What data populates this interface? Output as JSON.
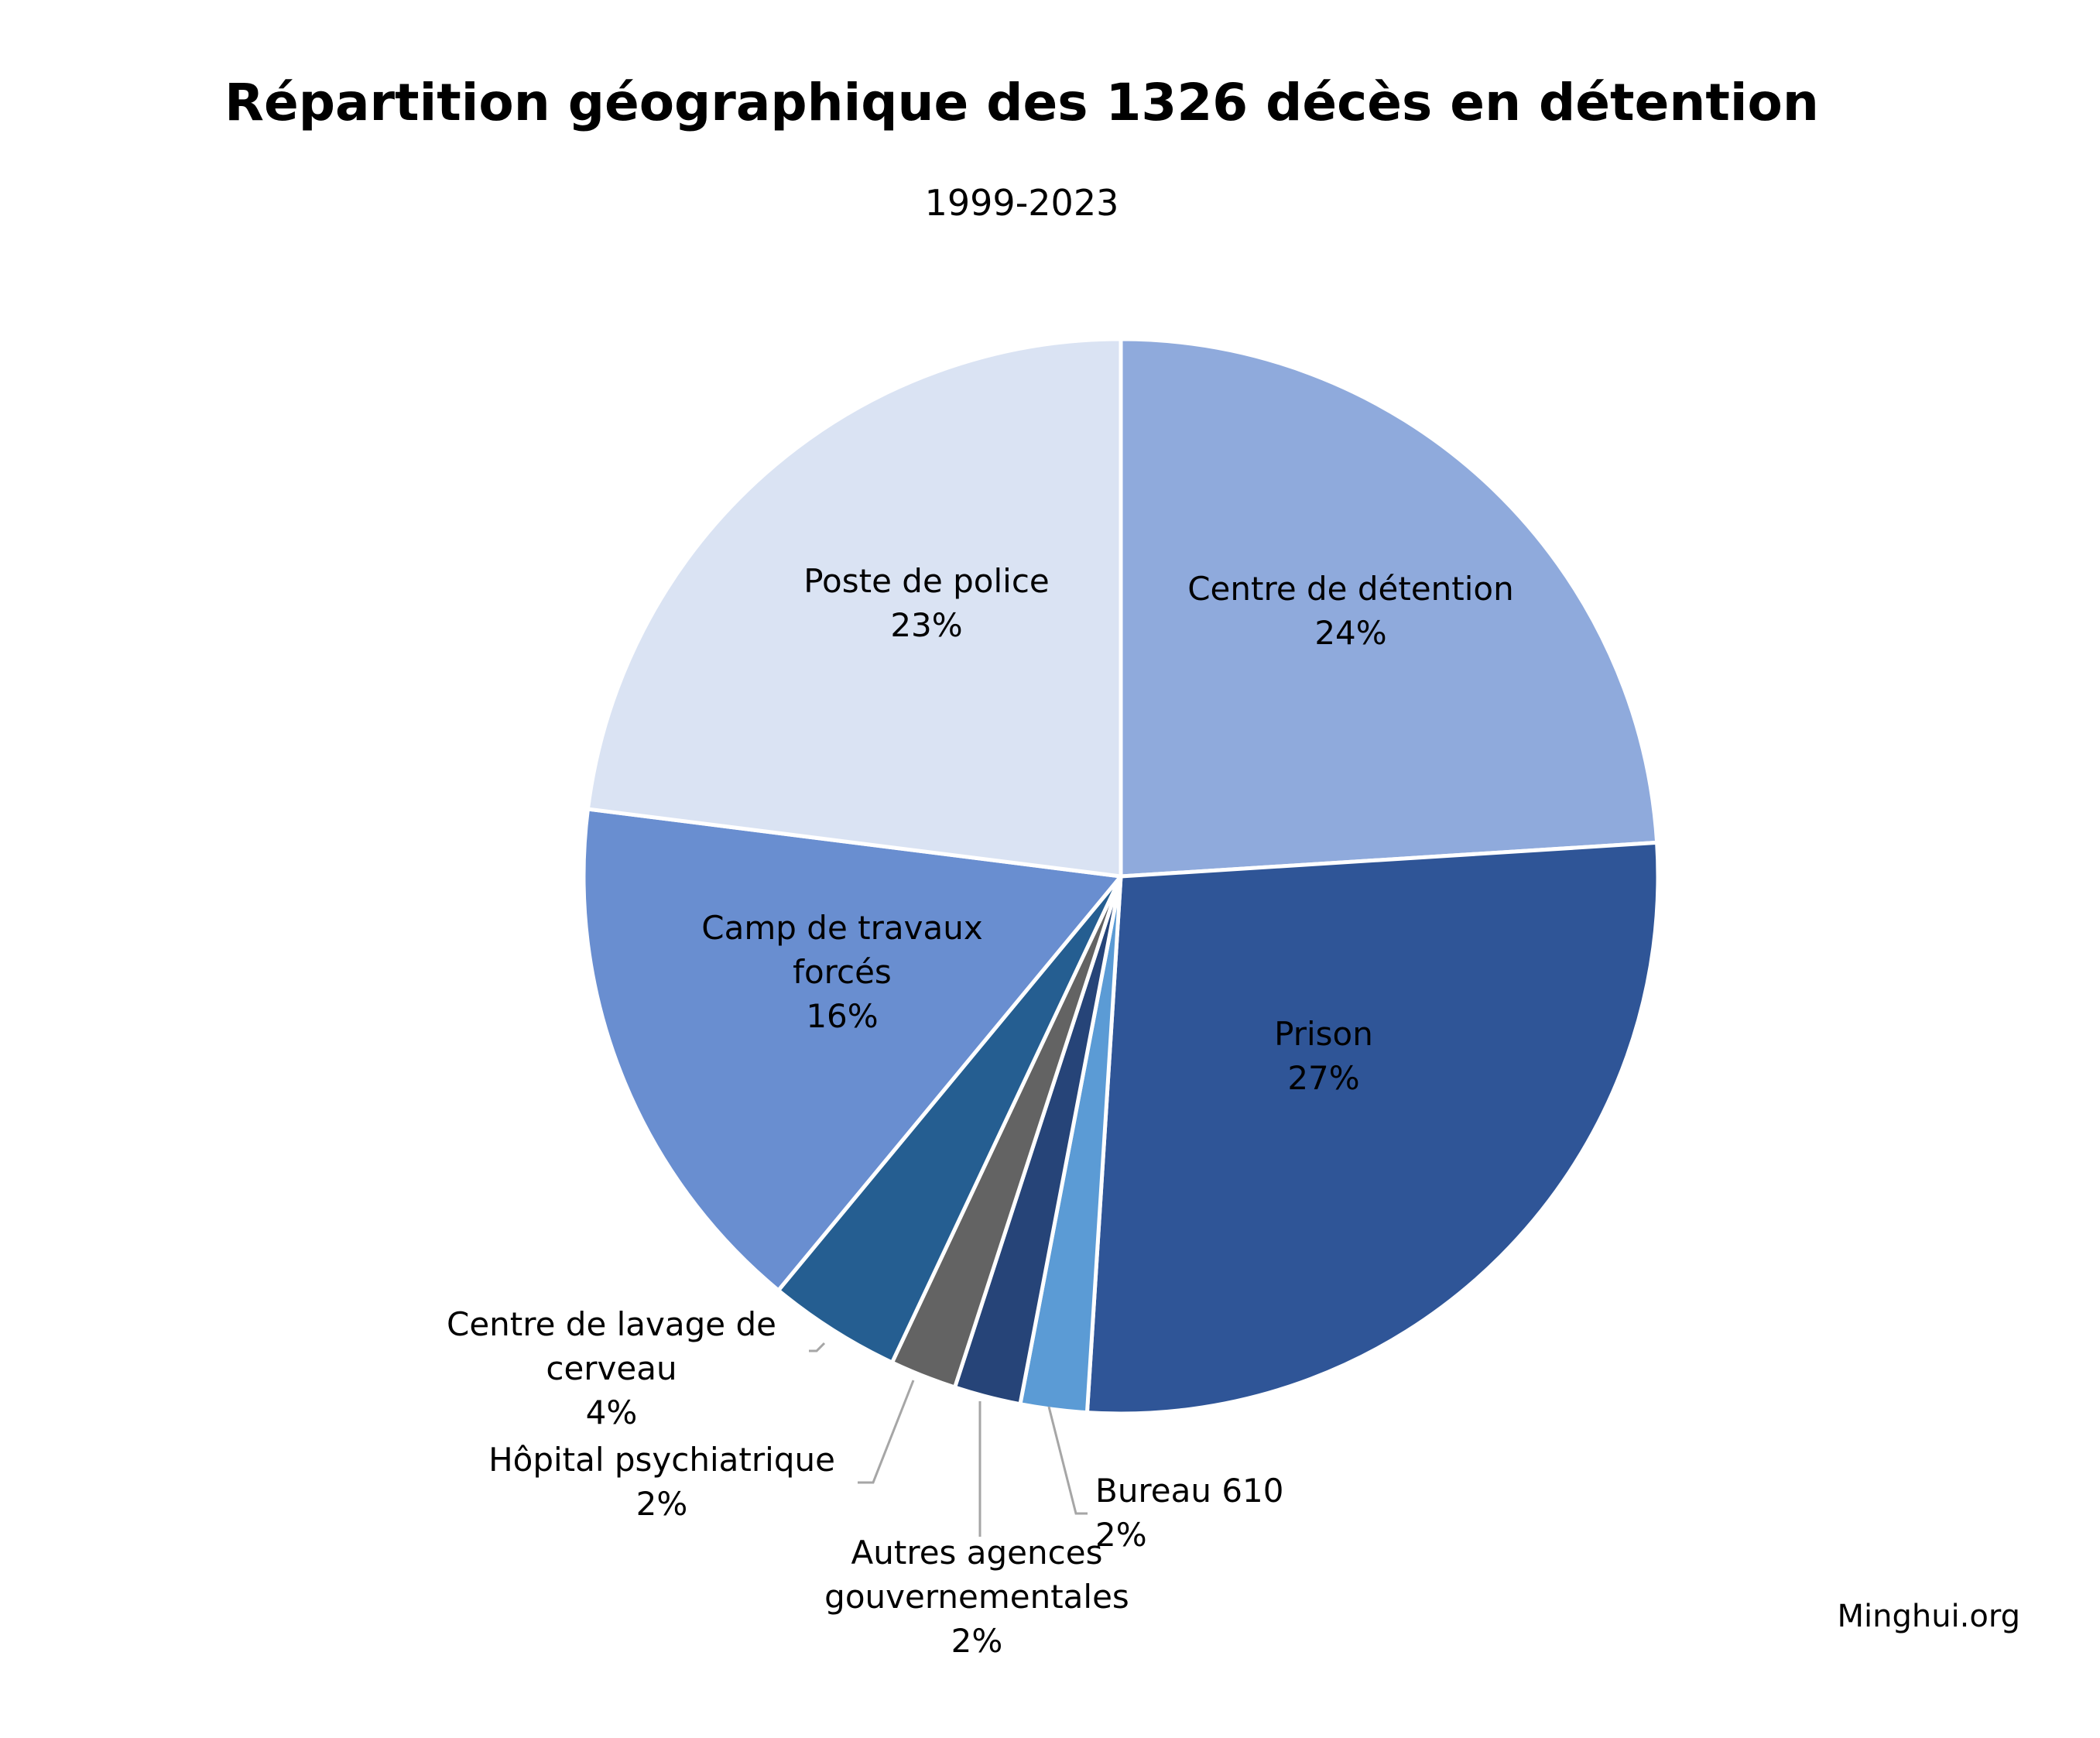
{
  "chart_data": {
    "type": "pie",
    "title": "Répartition géographique des 1326 décès en détention",
    "subtitle": "1999-2023",
    "credit": "Minghui.org",
    "slices": [
      {
        "label_lines": [
          "Centre de détention"
        ],
        "value": 24,
        "value_label": "24%",
        "color": "#8faadc"
      },
      {
        "label_lines": [
          "Prison"
        ],
        "value": 27,
        "value_label": "27%",
        "color": "#2f5597"
      },
      {
        "label_lines": [
          "Bureau 610"
        ],
        "value": 2,
        "value_label": "2%",
        "color": "#5b9bd5"
      },
      {
        "label_lines": [
          "Autres agences",
          "gouvernementales"
        ],
        "value": 2,
        "value_label": "2%",
        "color": "#264478"
      },
      {
        "label_lines": [
          "Hôpital psychiatrique"
        ],
        "value": 2,
        "value_label": "2%",
        "color": "#636363"
      },
      {
        "label_lines": [
          "Centre de lavage de",
          "cerveau"
        ],
        "value": 4,
        "value_label": "4%",
        "color": "#255e91"
      },
      {
        "label_lines": [
          "Camp de travaux",
          "forcés"
        ],
        "value": 16,
        "value_label": "16%",
        "color": "#698ed0"
      },
      {
        "label_lines": [
          "Poste de police"
        ],
        "value": 23,
        "value_label": "23%",
        "color": "#dae3f3"
      }
    ]
  }
}
